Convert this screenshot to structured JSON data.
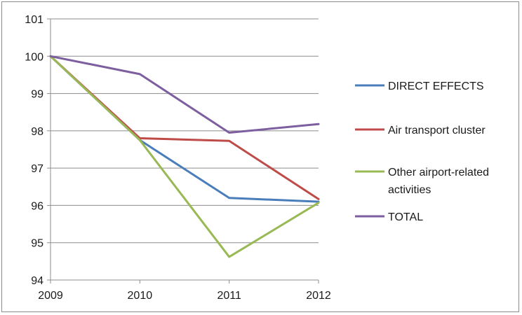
{
  "chart_data": {
    "type": "line",
    "title": "",
    "xlabel": "",
    "ylabel": "",
    "categories": [
      "2009",
      "2010",
      "2011",
      "2012"
    ],
    "ylim": [
      94,
      101
    ],
    "yticks": [
      94,
      95,
      96,
      97,
      98,
      99,
      100,
      101
    ],
    "grid": "horizontal",
    "legend": "right",
    "series": [
      {
        "name": "DIRECT EFFECTS",
        "color": "#4a7ebb",
        "values": [
          100,
          97.75,
          96.2,
          96.1
        ]
      },
      {
        "name": "Air transport cluster",
        "color": "#be4b48",
        "values": [
          100,
          97.8,
          97.73,
          96.17
        ]
      },
      {
        "name": "Other airport-related activities",
        "legend_lines": [
          "Other airport-related",
          "activities"
        ],
        "color": "#98b954",
        "values": [
          100,
          97.75,
          94.62,
          96.07
        ]
      },
      {
        "name": "TOTAL",
        "color": "#7d5fa0",
        "values": [
          100,
          99.52,
          97.95,
          98.18
        ]
      }
    ]
  }
}
